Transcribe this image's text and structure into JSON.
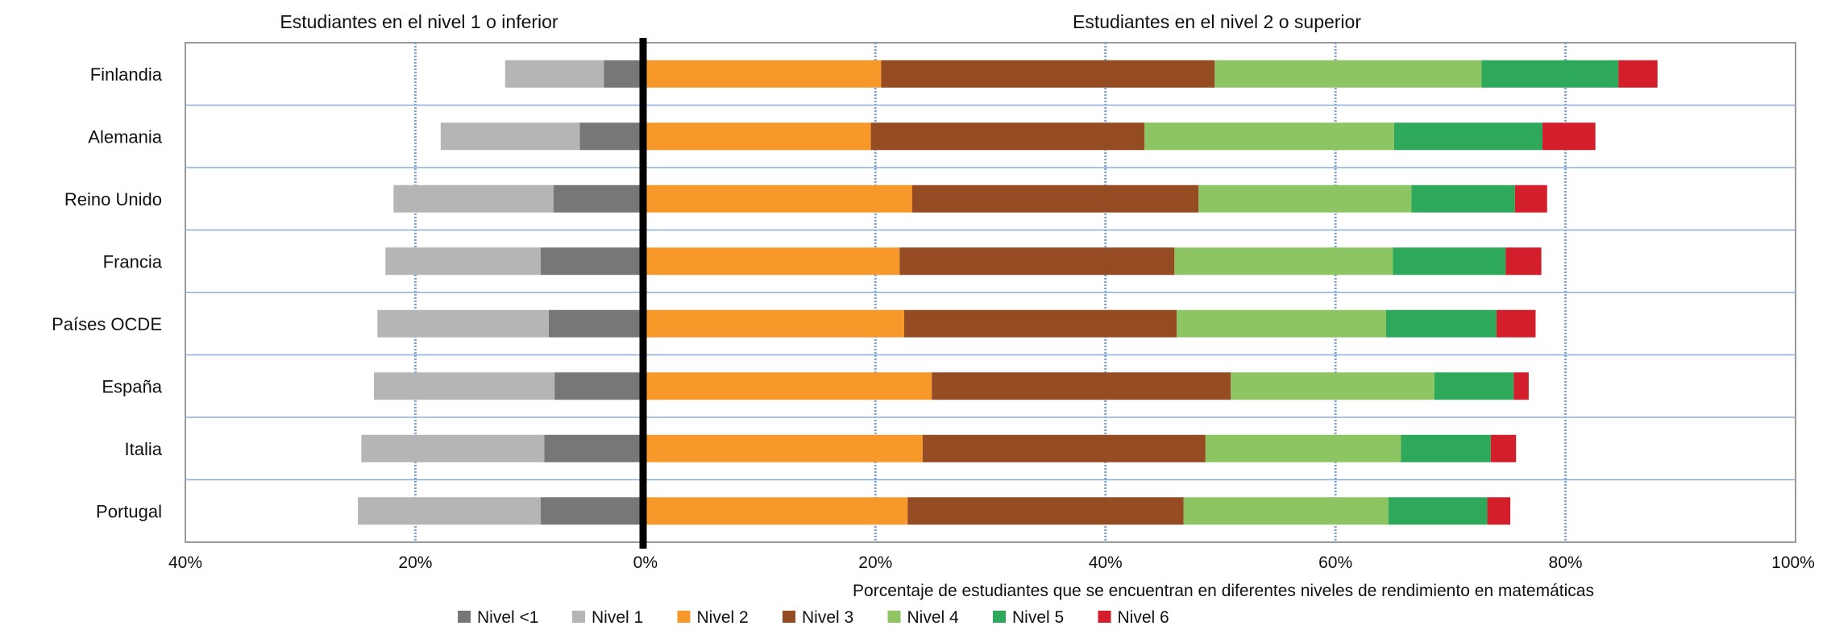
{
  "chart_data": {
    "type": "bar",
    "orientation": "horizontal",
    "stacked": true,
    "left_heading": "Estudiantes en el nivel 1 o inferior",
    "right_heading": "Estudiantes en el nivel 2 o superior",
    "xlabel": "Porcentaje de estudiantes que se encuentran en diferentes niveles de rendimiento en matemáticas",
    "xlim": [
      -40,
      100
    ],
    "x_ticks": [
      -40,
      -20,
      0,
      20,
      40,
      60,
      80,
      100
    ],
    "x_tick_labels": [
      "40%",
      "20%",
      "0%",
      "20%",
      "40%",
      "60%",
      "80%",
      "100%"
    ],
    "grid": true,
    "legend_position": "bottom",
    "categories": [
      "Finlandia",
      "Alemania",
      "Reino Unido",
      "Francia",
      "Países OCDE",
      "España",
      "Italia",
      "Portugal"
    ],
    "series": [
      {
        "name": "Nivel <1",
        "side": "left",
        "color": "#767877",
        "values": [
          3.6,
          5.7,
          8.0,
          9.1,
          8.4,
          7.9,
          8.8,
          9.1
        ]
      },
      {
        "name": "Nivel 1",
        "side": "left",
        "color": "#b4b5b4",
        "values": [
          8.6,
          12.1,
          13.9,
          13.5,
          14.9,
          15.7,
          15.9,
          15.9
        ]
      },
      {
        "name": "Nivel 2",
        "side": "right",
        "color": "#f7982b",
        "values": [
          20.5,
          19.6,
          23.2,
          22.1,
          22.5,
          24.9,
          24.1,
          22.8
        ]
      },
      {
        "name": "Nivel 3",
        "side": "right",
        "color": "#954c22",
        "values": [
          29.0,
          23.8,
          24.9,
          23.9,
          23.7,
          26.0,
          24.6,
          24.0
        ]
      },
      {
        "name": "Nivel 4",
        "side": "right",
        "color": "#8dc562",
        "values": [
          23.2,
          21.7,
          18.5,
          19.0,
          18.2,
          17.7,
          17.0,
          17.8
        ]
      },
      {
        "name": "Nivel 5",
        "side": "right",
        "color": "#2ea85a",
        "values": [
          11.9,
          12.9,
          9.0,
          9.8,
          9.6,
          6.9,
          7.8,
          8.6
        ]
      },
      {
        "name": "Nivel 6",
        "side": "right",
        "color": "#d21f2b",
        "values": [
          3.4,
          4.6,
          2.8,
          3.1,
          3.4,
          1.3,
          2.2,
          2.0
        ]
      }
    ]
  }
}
